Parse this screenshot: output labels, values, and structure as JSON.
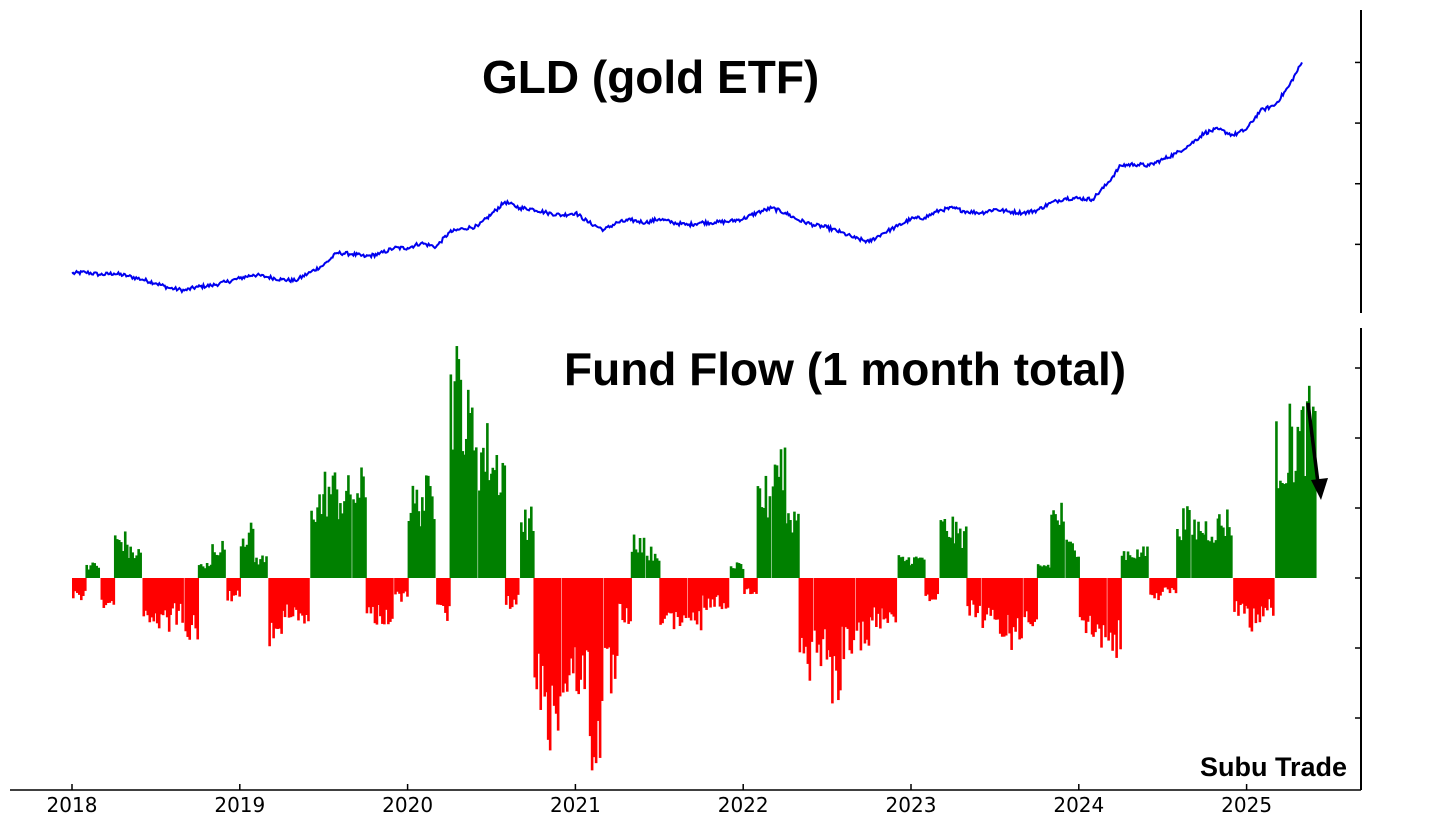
{
  "colors": {
    "price_line": "#0000ee",
    "inflow": "#008000",
    "outflow": "#ff0000",
    "axis": "#000000",
    "annotation_arrow": "#000000"
  },
  "watermark": "Subu Trade",
  "chart_data": [
    {
      "type": "line",
      "title": "GLD (gold ETF)",
      "xlabel": "",
      "ylabel": "",
      "grid": false,
      "legend": "none",
      "y_tick_labels_shown": false,
      "x_ticks": [
        "2018",
        "2019",
        "2020",
        "2021",
        "2022",
        "2023",
        "2024",
        "2025"
      ],
      "x_range": [
        2018.0,
        2025.42
      ],
      "ylim": [
        100,
        335
      ],
      "series": [
        {
          "x": [
            2018.0,
            2018.08,
            2018.17,
            2018.25,
            2018.33,
            2018.42,
            2018.5,
            2018.58,
            2018.67,
            2018.75,
            2018.83,
            2018.92,
            2019.0,
            2019.08,
            2019.17,
            2019.25,
            2019.33,
            2019.42,
            2019.5,
            2019.58,
            2019.67,
            2019.75,
            2019.83,
            2019.92,
            2020.0,
            2020.08,
            2020.17,
            2020.25,
            2020.33,
            2020.42,
            2020.5,
            2020.58,
            2020.67,
            2020.75,
            2020.83,
            2020.92,
            2021.0,
            2021.08,
            2021.17,
            2021.25,
            2021.33,
            2021.42,
            2021.5,
            2021.58,
            2021.67,
            2021.75,
            2021.83,
            2021.92,
            2022.0,
            2022.08,
            2022.17,
            2022.25,
            2022.33,
            2022.42,
            2022.5,
            2022.58,
            2022.67,
            2022.75,
            2022.83,
            2022.92,
            2023.0,
            2023.08,
            2023.17,
            2023.25,
            2023.33,
            2023.42,
            2023.5,
            2023.58,
            2023.67,
            2023.75,
            2023.83,
            2023.92,
            2024.0,
            2024.08,
            2024.17,
            2024.25,
            2024.33,
            2024.42,
            2024.5,
            2024.58,
            2024.67,
            2024.75,
            2024.83,
            2024.92,
            2025.0,
            2025.08,
            2025.17,
            2025.25,
            2025.33
          ],
          "values": [
            126,
            127,
            125,
            126,
            124,
            121,
            118,
            114,
            112,
            115,
            116,
            119,
            122,
            125,
            123,
            121,
            120,
            127,
            133,
            143,
            142,
            140,
            142,
            147,
            147,
            151,
            148,
            160,
            163,
            165,
            175,
            185,
            180,
            179,
            176,
            174,
            176,
            168,
            162,
            168,
            170,
            168,
            171,
            168,
            166,
            168,
            168,
            169,
            171,
            176,
            180,
            176,
            170,
            166,
            164,
            160,
            155,
            152,
            159,
            165,
            171,
            172,
            178,
            180,
            177,
            176,
            179,
            177,
            176,
            178,
            184,
            188,
            188,
            187,
            200,
            215,
            216,
            215,
            220,
            225,
            233,
            242,
            245,
            240,
            245,
            260,
            265,
            280,
            300
          ]
        }
      ]
    },
    {
      "type": "bar",
      "title": "Fund Flow (1 month total)",
      "xlabel": "",
      "ylabel": "",
      "grid": false,
      "legend": "none",
      "y_tick_labels_shown": false,
      "x_ticks": [
        "2018",
        "2019",
        "2020",
        "2021",
        "2022",
        "2023",
        "2024",
        "2025"
      ],
      "x_range": [
        2018.0,
        2025.42
      ],
      "ylim": [
        -3.1,
        3.5
      ],
      "zero_line": 0,
      "annotation": "downward arrow after last bar",
      "series": [
        {
          "x": [
            2018.0,
            2018.08,
            2018.17,
            2018.25,
            2018.33,
            2018.42,
            2018.5,
            2018.58,
            2018.67,
            2018.75,
            2018.83,
            2018.92,
            2019.0,
            2019.08,
            2019.17,
            2019.25,
            2019.33,
            2019.42,
            2019.5,
            2019.58,
            2019.67,
            2019.75,
            2019.83,
            2019.92,
            2020.0,
            2020.08,
            2020.17,
            2020.25,
            2020.33,
            2020.42,
            2020.5,
            2020.58,
            2020.67,
            2020.75,
            2020.83,
            2020.92,
            2021.0,
            2021.08,
            2021.17,
            2021.25,
            2021.33,
            2021.42,
            2021.5,
            2021.58,
            2021.67,
            2021.75,
            2021.83,
            2021.92,
            2022.0,
            2022.08,
            2022.17,
            2022.25,
            2022.33,
            2022.42,
            2022.5,
            2022.58,
            2022.67,
            2022.75,
            2022.83,
            2022.92,
            2023.0,
            2023.08,
            2023.17,
            2023.25,
            2023.33,
            2023.42,
            2023.5,
            2023.58,
            2023.67,
            2023.75,
            2023.83,
            2023.92,
            2024.0,
            2024.08,
            2024.17,
            2024.25,
            2024.33,
            2024.42,
            2024.5,
            2024.58,
            2024.67,
            2024.75,
            2024.83,
            2024.92,
            2025.0,
            2025.08,
            2025.17,
            2025.25,
            2025.33
          ],
          "values": [
            -0.3,
            0.2,
            -0.4,
            0.6,
            0.4,
            -0.6,
            -0.7,
            -0.6,
            -0.8,
            0.2,
            0.5,
            -0.3,
            0.7,
            0.3,
            -1.0,
            -0.5,
            -0.6,
            1.2,
            1.4,
            1.3,
            1.4,
            -0.6,
            -0.6,
            -0.3,
            1.2,
            1.3,
            -0.6,
            3.0,
            2.4,
            2.0,
            1.8,
            -0.4,
            0.9,
            -1.7,
            -2.2,
            -1.6,
            -1.5,
            -2.5,
            -1.6,
            -0.6,
            0.6,
            0.4,
            -0.6,
            -0.8,
            -0.7,
            -0.4,
            -0.4,
            0.2,
            -0.2,
            1.3,
            1.9,
            1.0,
            -1.3,
            -1.1,
            -1.6,
            -1.1,
            -0.9,
            -0.7,
            -0.6,
            0.3,
            0.3,
            -0.3,
            0.8,
            0.7,
            -0.5,
            -0.7,
            -0.8,
            -0.9,
            -0.6,
            0.2,
            1.0,
            0.5,
            -0.8,
            -0.9,
            -1.0,
            0.4,
            0.4,
            -0.3,
            -0.2,
            0.9,
            0.8,
            0.8,
            0.9,
            -0.5,
            -0.7,
            -0.5,
            2.0,
            2.2,
            2.4
          ]
        }
      ]
    }
  ]
}
